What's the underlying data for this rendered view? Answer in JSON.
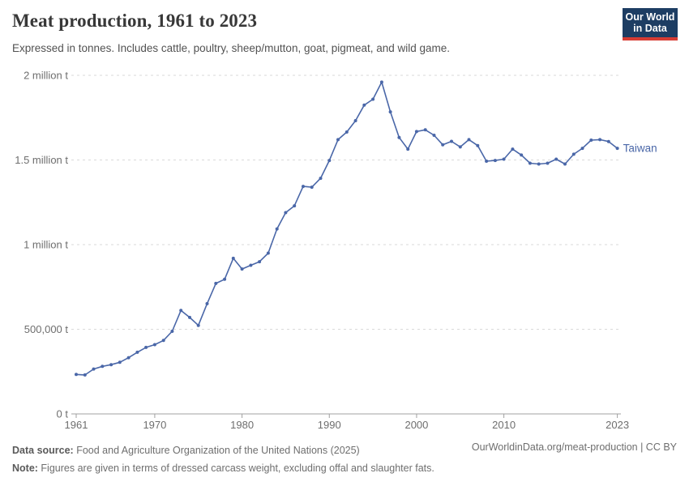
{
  "header": {
    "title": "Meat production, 1961 to 2023",
    "subtitle": "Expressed in tonnes. Includes cattle, poultry, sheep/mutton, goat, pigmeat, and wild game."
  },
  "logo": {
    "line1": "Our World",
    "line2": "in Data",
    "bg_color": "#1d3d63",
    "bar_color": "#d73c34"
  },
  "footer": {
    "datasource_label": "Data source:",
    "datasource_text": " Food and Agriculture Organization of the United Nations (2025)",
    "note_label": "Note:",
    "note_text": " Figures are given in terms of dressed carcass weight, excluding offal and slaughter fats.",
    "right_text": "OurWorldinData.org/meat-production | CC BY"
  },
  "colors": {
    "line": "#4A67A8",
    "grid": "#d9d9d9",
    "axis": "#a0a0a0",
    "tick_text": "#6e6e6e"
  },
  "chart_data": {
    "type": "line",
    "title": "Meat production, 1961 to 2023",
    "entity_label": "Taiwan",
    "unit": "tonnes",
    "xlabel": "",
    "ylabel": "",
    "xlim": [
      1961,
      2023
    ],
    "ylim": [
      0,
      2000000
    ],
    "grid": "horizontal-dashed",
    "legend_position": "end-of-line-label",
    "color": "#4A67A8",
    "xticks": [
      {
        "value": 1961,
        "label": "1961"
      },
      {
        "value": 1970,
        "label": "1970"
      },
      {
        "value": 1980,
        "label": "1980"
      },
      {
        "value": 1990,
        "label": "1990"
      },
      {
        "value": 2000,
        "label": "2000"
      },
      {
        "value": 2010,
        "label": "2010"
      },
      {
        "value": 2023,
        "label": "2023"
      }
    ],
    "yticks": [
      {
        "value": 0,
        "label": "0 t"
      },
      {
        "value": 500000,
        "label": "500,000 t"
      },
      {
        "value": 1000000,
        "label": "1 million t"
      },
      {
        "value": 1500000,
        "label": "1.5 million t"
      },
      {
        "value": 2000000,
        "label": "2 million t"
      }
    ],
    "x": [
      1961,
      1962,
      1963,
      1964,
      1965,
      1966,
      1967,
      1968,
      1969,
      1970,
      1971,
      1972,
      1973,
      1974,
      1975,
      1976,
      1977,
      1978,
      1979,
      1980,
      1981,
      1982,
      1983,
      1984,
      1985,
      1986,
      1987,
      1988,
      1989,
      1990,
      1991,
      1992,
      1993,
      1994,
      1995,
      1996,
      1997,
      1998,
      1999,
      2000,
      2001,
      2002,
      2003,
      2004,
      2005,
      2006,
      2007,
      2008,
      2009,
      2010,
      2011,
      2012,
      2013,
      2014,
      2015,
      2016,
      2017,
      2018,
      2019,
      2020,
      2021,
      2022,
      2023
    ],
    "values": [
      233000,
      230000,
      265000,
      281000,
      291000,
      305000,
      332000,
      364000,
      393000,
      409000,
      434000,
      488000,
      611000,
      570000,
      523000,
      651000,
      771000,
      795000,
      919000,
      856000,
      878000,
      899000,
      950000,
      1093000,
      1189000,
      1229000,
      1344000,
      1339000,
      1392000,
      1497000,
      1620000,
      1665000,
      1732000,
      1824000,
      1859000,
      1960000,
      1784000,
      1633000,
      1564000,
      1668000,
      1678000,
      1646000,
      1590000,
      1610000,
      1577000,
      1620000,
      1585000,
      1493000,
      1497000,
      1505000,
      1564000,
      1529000,
      1481000,
      1476000,
      1481000,
      1505000,
      1476000,
      1534000,
      1569000,
      1617000,
      1620000,
      1609000,
      1569000
    ]
  }
}
